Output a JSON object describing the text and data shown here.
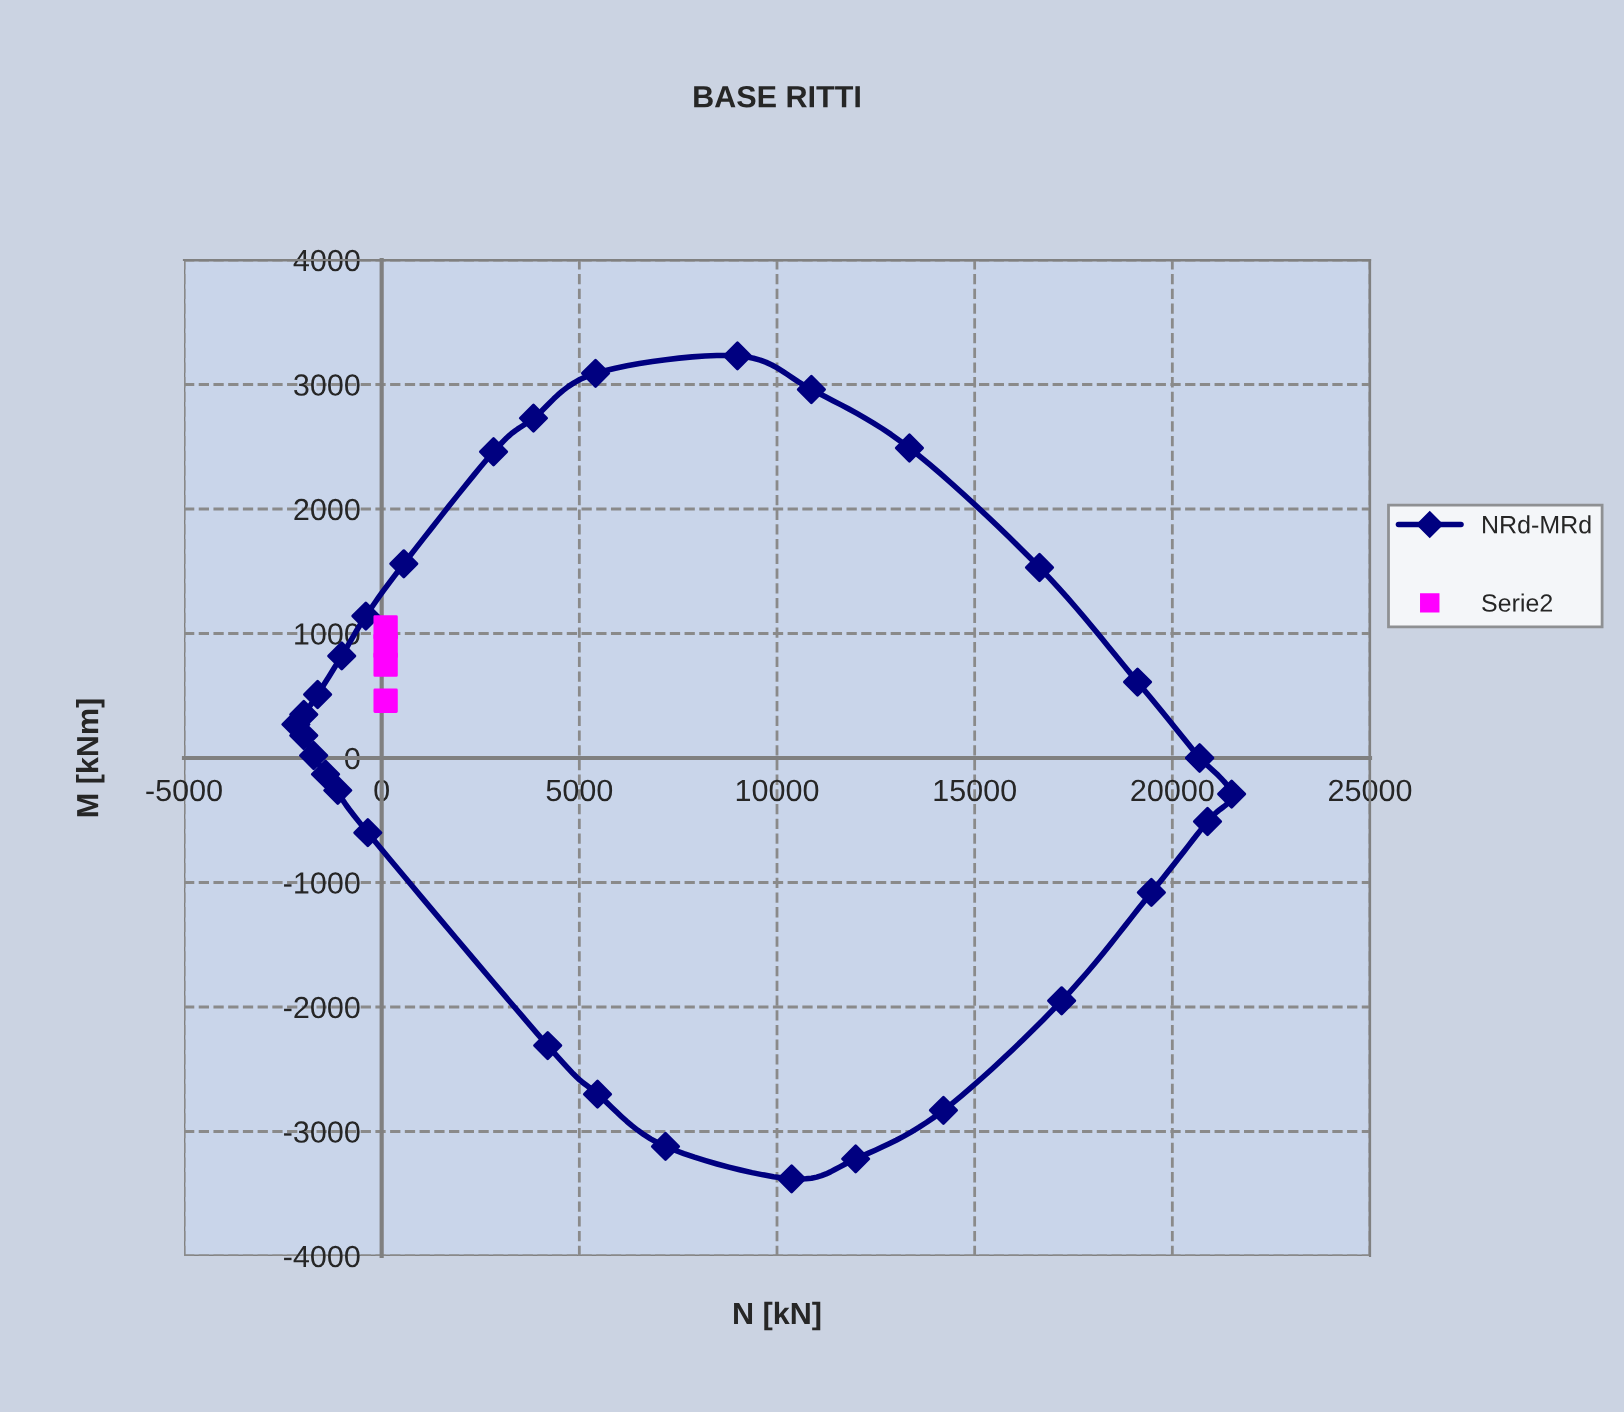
{
  "chart_data": {
    "type": "scatter",
    "title": "BASE RITTI",
    "xlabel": "N [kN]",
    "ylabel": "M [kNm]",
    "xlim": [
      -5000,
      25000
    ],
    "ylim": [
      -4000,
      4000
    ],
    "xticks": [
      -5000,
      0,
      5000,
      10000,
      15000,
      20000,
      25000
    ],
    "yticks": [
      -4000,
      -3000,
      -2000,
      -1000,
      0,
      1000,
      2000,
      3000,
      4000
    ],
    "grid": true,
    "legend": "right",
    "series": [
      {
        "name": "NRd-MRd",
        "color": "#000080",
        "marker": "diamond",
        "line_style": "solid",
        "x": [
          20690,
          19120,
          16640,
          13350,
          10870,
          9000,
          5410,
          3840,
          2830,
          560,
          -400,
          -1010,
          -1620,
          -1970,
          -2170,
          -1970,
          -1720,
          -1420,
          -1110,
          -350,
          4200,
          5460,
          7180,
          10370,
          11990,
          14210,
          17200,
          19470,
          20890,
          21500,
          20690
        ],
        "values": [
          0,
          610,
          1530,
          2490,
          2960,
          3230,
          3090,
          2730,
          2460,
          1560,
          1140,
          820,
          510,
          350,
          270,
          180,
          20,
          -130,
          -260,
          -600,
          -2310,
          -2700,
          -3120,
          -3380,
          -3220,
          -2830,
          -1950,
          -1080,
          -510,
          -290,
          0
        ]
      },
      {
        "name": "Serie2",
        "color": "#ff00ff",
        "marker": "square",
        "x": [
          100,
          100,
          100,
          100
        ],
        "values": [
          1050,
          900,
          750,
          460
        ]
      }
    ]
  }
}
